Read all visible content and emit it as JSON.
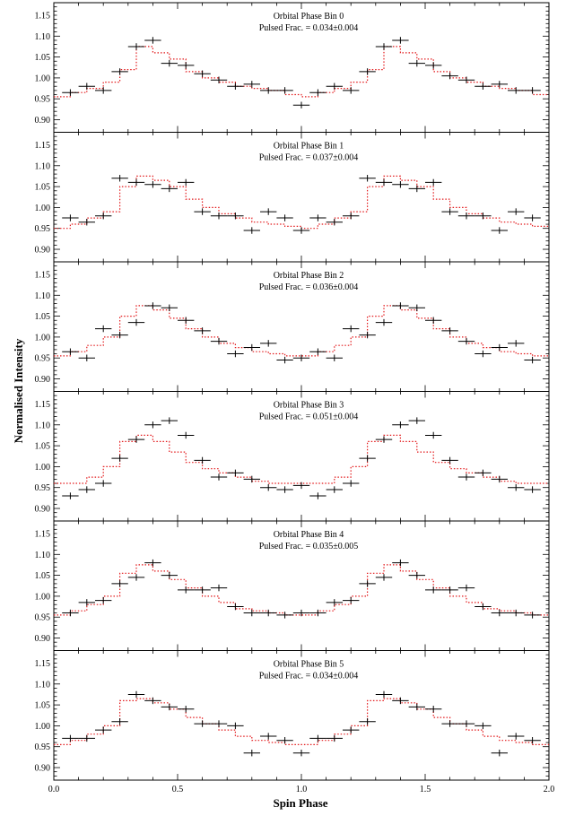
{
  "chart_data": {
    "type": "scatter",
    "description_free": true,
    "xlabel": "Spin Phase",
    "ylabel": "Normalised Intensity",
    "xlim": [
      0.0,
      2.0
    ],
    "ylim": [
      0.87,
      1.18
    ],
    "x_ticks": [
      "0.0",
      "0.5",
      "1.0",
      "1.5",
      "2.0"
    ],
    "x_tick_values": [
      0.0,
      0.5,
      1.0,
      1.5,
      2.0
    ],
    "y_ticks": [
      "0.90",
      "0.95",
      "1.00",
      "1.05",
      "1.10",
      "1.15"
    ],
    "y_tick_values": [
      0.9,
      0.95,
      1.0,
      1.05,
      1.1,
      1.15
    ],
    "x_bin_centers": [
      0.0667,
      0.1333,
      0.2,
      0.2667,
      0.3333,
      0.4,
      0.4667,
      0.5333,
      0.6,
      0.6667,
      0.7333,
      0.8,
      0.8667,
      0.9333,
      1.0,
      1.0667,
      1.1333,
      1.2,
      1.2667,
      1.3333,
      1.4,
      1.4667,
      1.5333,
      1.6,
      1.6667,
      1.7333,
      1.8,
      1.8667,
      1.9333
    ],
    "x_error_half_width": 0.0333,
    "y_error_half_width": 0.008,
    "model_color": "#e31a1c",
    "data_color": "#000000",
    "panels": [
      {
        "title": "Orbital Phase Bin 0",
        "subtitle": "Pulsed Frac. = 0.034±0.004",
        "values": [
          0.965,
          0.98,
          0.97,
          1.015,
          1.075,
          1.09,
          1.035,
          1.03,
          1.01,
          0.995,
          0.98,
          0.985,
          0.97,
          0.97,
          0.935,
          0.965,
          0.98,
          0.97,
          1.015,
          1.075,
          1.09,
          1.035,
          1.03,
          1.005,
          0.995,
          0.98,
          0.985,
          0.97,
          0.97
        ],
        "model": [
          0.955,
          0.965,
          0.975,
          0.99,
          1.02,
          1.075,
          1.06,
          1.045,
          1.015,
          1.0,
          0.99,
          0.98,
          0.975,
          0.97,
          0.96,
          0.955,
          0.965,
          0.975,
          0.99,
          1.02,
          1.075,
          1.06,
          1.045,
          1.015,
          1.0,
          0.99,
          0.98,
          0.975,
          0.97,
          0.96
        ]
      },
      {
        "title": "Orbital Phase Bin 1",
        "subtitle": "Pulsed Frac. = 0.037±0.004",
        "values": [
          0.975,
          0.965,
          0.98,
          1.07,
          1.06,
          1.055,
          1.045,
          1.06,
          0.99,
          0.98,
          0.98,
          0.945,
          0.99,
          0.975,
          0.945,
          0.975,
          0.965,
          0.98,
          1.07,
          1.06,
          1.055,
          1.045,
          1.06,
          0.99,
          0.98,
          0.98,
          0.945,
          0.99,
          0.975
        ],
        "model": [
          0.95,
          0.96,
          0.975,
          0.99,
          1.05,
          1.075,
          1.065,
          1.05,
          1.02,
          1.0,
          0.985,
          0.975,
          0.965,
          0.96,
          0.955,
          0.95,
          0.96,
          0.975,
          0.99,
          1.05,
          1.075,
          1.065,
          1.05,
          1.02,
          1.0,
          0.985,
          0.975,
          0.965,
          0.96,
          0.955
        ]
      },
      {
        "title": "Orbital Phase Bin 2",
        "subtitle": "Pulsed Frac. = 0.036±0.004",
        "values": [
          0.965,
          0.95,
          1.02,
          1.005,
          1.035,
          1.075,
          1.07,
          1.04,
          1.015,
          0.99,
          0.96,
          0.975,
          0.985,
          0.945,
          0.95,
          0.965,
          0.95,
          1.02,
          1.005,
          1.035,
          1.075,
          1.07,
          1.04,
          1.015,
          0.99,
          0.96,
          0.975,
          0.985,
          0.945
        ],
        "model": [
          0.955,
          0.965,
          0.98,
          1.0,
          1.05,
          1.075,
          1.065,
          1.045,
          1.02,
          1.0,
          0.985,
          0.975,
          0.965,
          0.96,
          0.955,
          0.955,
          0.965,
          0.98,
          1.0,
          1.05,
          1.075,
          1.065,
          1.045,
          1.02,
          1.0,
          0.985,
          0.975,
          0.965,
          0.96,
          0.955
        ]
      },
      {
        "title": "Orbital Phase Bin 3",
        "subtitle": "Pulsed Frac. = 0.051±0.004",
        "values": [
          0.93,
          0.945,
          0.96,
          1.02,
          1.065,
          1.1,
          1.11,
          1.075,
          1.015,
          0.975,
          0.985,
          0.97,
          0.95,
          0.945,
          0.955,
          0.93,
          0.945,
          0.96,
          1.02,
          1.065,
          1.1,
          1.11,
          1.075,
          1.015,
          0.975,
          0.985,
          0.97,
          0.95,
          0.945
        ],
        "model": [
          0.96,
          0.96,
          0.975,
          1.0,
          1.06,
          1.075,
          1.06,
          1.035,
          1.01,
          0.995,
          0.985,
          0.975,
          0.965,
          0.96,
          0.96,
          0.96,
          0.96,
          0.975,
          1.0,
          1.06,
          1.075,
          1.06,
          1.035,
          1.01,
          0.995,
          0.985,
          0.975,
          0.965,
          0.96,
          0.96
        ]
      },
      {
        "title": "Orbital Phase Bin 4",
        "subtitle": "Pulsed Frac. = 0.035±0.005",
        "values": [
          0.96,
          0.985,
          0.99,
          1.03,
          1.045,
          1.08,
          1.05,
          1.015,
          1.015,
          1.02,
          0.975,
          0.96,
          0.96,
          0.955,
          0.96,
          0.96,
          0.985,
          0.99,
          1.03,
          1.045,
          1.08,
          1.05,
          1.015,
          1.015,
          1.02,
          0.975,
          0.96,
          0.96,
          0.955
        ],
        "model": [
          0.955,
          0.965,
          0.98,
          1.0,
          1.055,
          1.075,
          1.06,
          1.04,
          1.02,
          1.0,
          0.985,
          0.97,
          0.965,
          0.96,
          0.955,
          0.955,
          0.965,
          0.98,
          1.0,
          1.055,
          1.075,
          1.06,
          1.04,
          1.02,
          1.0,
          0.985,
          0.97,
          0.965,
          0.96,
          0.955
        ]
      },
      {
        "title": "Orbital Phase Bin 5",
        "subtitle": "Pulsed Frac. = 0.034±0.004",
        "values": [
          0.97,
          0.97,
          0.99,
          1.01,
          1.075,
          1.06,
          1.045,
          1.04,
          1.005,
          1.005,
          1.0,
          0.935,
          0.975,
          0.965,
          0.935,
          0.97,
          0.97,
          0.99,
          1.01,
          1.075,
          1.06,
          1.045,
          1.04,
          1.005,
          1.005,
          1.0,
          0.935,
          0.975,
          0.965
        ],
        "model": [
          0.955,
          0.965,
          0.98,
          1.0,
          1.06,
          1.065,
          1.055,
          1.04,
          1.02,
          1.005,
          0.99,
          0.975,
          0.965,
          0.96,
          0.955,
          0.955,
          0.965,
          0.98,
          1.0,
          1.06,
          1.065,
          1.055,
          1.04,
          1.02,
          1.005,
          0.99,
          0.975,
          0.965,
          0.96,
          0.955
        ]
      }
    ]
  }
}
